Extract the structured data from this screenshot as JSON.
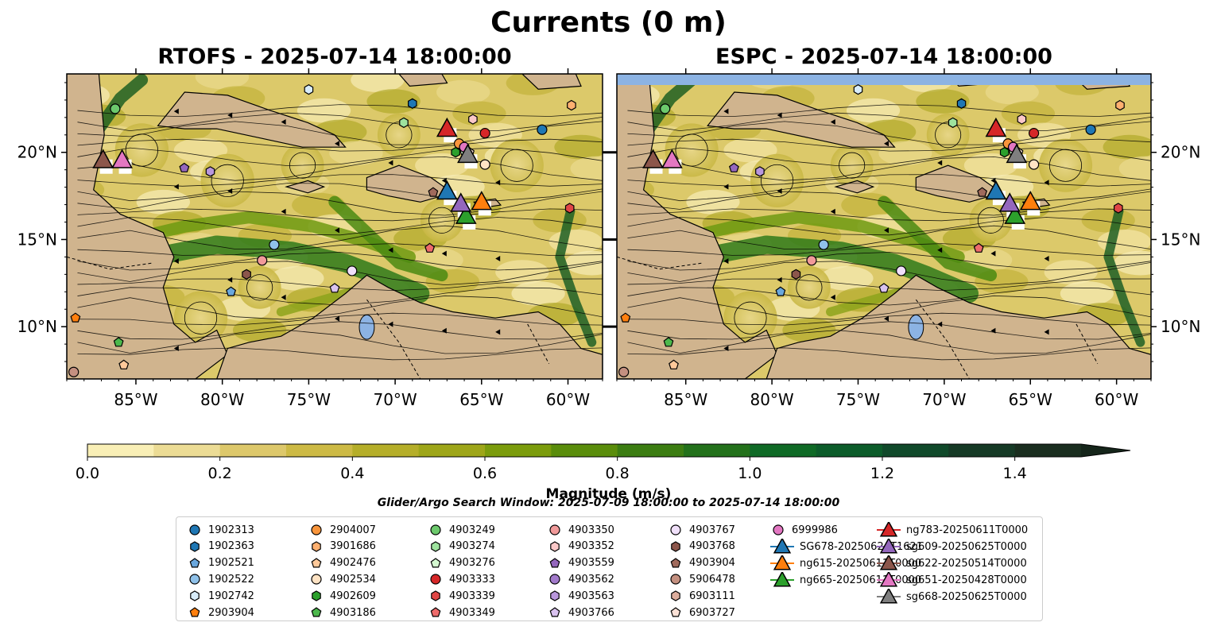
{
  "title": "Currents (0 m)",
  "panels": [
    {
      "title": "RTOFS - 2025-07-14 18:00:00"
    },
    {
      "title": "ESPC - 2025-07-14 18:00:00"
    }
  ],
  "lon_ticks": [
    "85°W",
    "80°W",
    "75°W",
    "70°W",
    "65°W",
    "60°W"
  ],
  "lat_ticks": [
    "20°N",
    "15°N",
    "10°N"
  ],
  "extent": {
    "lon": [
      -89,
      -58
    ],
    "lat": [
      7,
      24.5
    ]
  },
  "colorbar": {
    "label": "Magnitude (m/s)",
    "ticks": [
      "0.0",
      "0.2",
      "0.4",
      "0.6",
      "0.8",
      "1.0",
      "1.2",
      "1.4"
    ],
    "colors": [
      "#f9efb6",
      "#ecdc95",
      "#ddc86b",
      "#cdba45",
      "#b5ae29",
      "#9ea619",
      "#7b9c0c",
      "#5a8d0b",
      "#3c7d12",
      "#23711b",
      "#0f6a26",
      "#0c5c2a",
      "#10492a",
      "#163a26",
      "#1a2e1f"
    ],
    "extend_color": "#15251a"
  },
  "search_window": "Glider/Argo Search Window: 2025-07-09 18:00:00 to 2025-07-14 18:00:00",
  "colors": {
    "land": "#d0b48e",
    "water_blue": "#8cb3e3",
    "track_white": "#ffffff"
  },
  "legend": [
    {
      "label": "1902313",
      "marker": "circle",
      "color": "#1f77b4"
    },
    {
      "label": "1902363",
      "marker": "hexagon",
      "color": "#1f77b4"
    },
    {
      "label": "1902521",
      "marker": "pentagon",
      "color": "#6aa7dd"
    },
    {
      "label": "1902522",
      "marker": "circle",
      "color": "#8fc1e9"
    },
    {
      "label": "1902742",
      "marker": "hexagon",
      "color": "#d8ecfa"
    },
    {
      "label": "2903904",
      "marker": "pentagon",
      "color": "#ff7f0e"
    },
    {
      "label": "2904007",
      "marker": "circle",
      "color": "#f9953b"
    },
    {
      "label": "3901686",
      "marker": "hexagon",
      "color": "#ffb070"
    },
    {
      "label": "4902476",
      "marker": "pentagon",
      "color": "#ffc99a"
    },
    {
      "label": "4902534",
      "marker": "circle",
      "color": "#ffe3c4"
    },
    {
      "label": "4902609",
      "marker": "hexagon",
      "color": "#2ca02c"
    },
    {
      "label": "4903186",
      "marker": "pentagon",
      "color": "#4cb84c"
    },
    {
      "label": "4903249",
      "marker": "circle",
      "color": "#6cc96c"
    },
    {
      "label": "4903274",
      "marker": "hexagon",
      "color": "#9ee39e"
    },
    {
      "label": "4903276",
      "marker": "pentagon",
      "color": "#d4f8d0"
    },
    {
      "label": "4903333",
      "marker": "circle",
      "color": "#d62728"
    },
    {
      "label": "4903339",
      "marker": "hexagon",
      "color": "#e04646"
    },
    {
      "label": "4903349",
      "marker": "pentagon",
      "color": "#ee6b6b"
    },
    {
      "label": "4903350",
      "marker": "circle",
      "color": "#f19a9a"
    },
    {
      "label": "4903352",
      "marker": "hexagon",
      "color": "#fbc8c8"
    },
    {
      "label": "4903559",
      "marker": "pentagon",
      "color": "#9467bd"
    },
    {
      "label": "4903562",
      "marker": "circle",
      "color": "#a27acb"
    },
    {
      "label": "4903563",
      "marker": "hexagon",
      "color": "#b997dc"
    },
    {
      "label": "4903766",
      "marker": "pentagon",
      "color": "#d9c2ef"
    },
    {
      "label": "4903767",
      "marker": "circle",
      "color": "#f0e0fa"
    },
    {
      "label": "4903768",
      "marker": "hexagon",
      "color": "#8c564b"
    },
    {
      "label": "4903904",
      "marker": "pentagon",
      "color": "#a06a5c"
    },
    {
      "label": "5906478",
      "marker": "circle",
      "color": "#c49080"
    },
    {
      "label": "6903111",
      "marker": "hexagon",
      "color": "#ddad9d"
    },
    {
      "label": "6903727",
      "marker": "pentagon",
      "color": "#fbe1d6"
    },
    {
      "label": "6999986",
      "marker": "circle",
      "color": "#e377c2"
    },
    {
      "label": "SG678-20250624T1621",
      "marker": "triangle",
      "color": "#1f77b4"
    },
    {
      "label": "ng615-20250611T0000",
      "marker": "triangle",
      "color": "#ff7f0e"
    },
    {
      "label": "ng665-20250611T0000",
      "marker": "triangle",
      "color": "#2ca02c"
    },
    {
      "label": "ng783-20250611T0000",
      "marker": "triangle",
      "color": "#d62728"
    },
    {
      "label": "sg609-20250625T0000",
      "marker": "triangle",
      "color": "#9467bd"
    },
    {
      "label": "sg622-20250514T0000",
      "marker": "triangle",
      "color": "#8c564b"
    },
    {
      "label": "sg651-20250428T0000",
      "marker": "triangle",
      "color": "#e377c2"
    },
    {
      "label": "sg668-20250625T0000",
      "marker": "triangle",
      "color": "#7f7f7f"
    }
  ],
  "floats_argo": [
    {
      "id": "1902313",
      "lon": -61.5,
      "lat": 21.3
    },
    {
      "id": "1902363",
      "lon": -69.0,
      "lat": 22.8
    },
    {
      "id": "1902521",
      "lon": -79.5,
      "lat": 12.0
    },
    {
      "id": "1902522",
      "lon": -77.0,
      "lat": 14.7
    },
    {
      "id": "1902742",
      "lon": -75.0,
      "lat": 23.6
    },
    {
      "id": "2903904",
      "lon": -88.5,
      "lat": 10.5
    },
    {
      "id": "2904007",
      "lon": -66.3,
      "lat": 20.5
    },
    {
      "id": "3901686",
      "lon": -59.8,
      "lat": 22.7
    },
    {
      "id": "4902476",
      "lon": -85.7,
      "lat": 7.8
    },
    {
      "id": "4902534",
      "lon": -64.8,
      "lat": 19.3
    },
    {
      "id": "4902609",
      "lon": -66.5,
      "lat": 20.0
    },
    {
      "id": "4903186",
      "lon": -86.0,
      "lat": 9.1
    },
    {
      "id": "4903249",
      "lon": -86.2,
      "lat": 22.5
    },
    {
      "id": "4903274",
      "lon": -69.5,
      "lat": 21.7
    },
    {
      "id": "4903276",
      "lon": -66.0,
      "lat": 20.1
    },
    {
      "id": "4903333",
      "lon": -64.8,
      "lat": 21.1
    },
    {
      "id": "4903339",
      "lon": -59.9,
      "lat": 16.8
    },
    {
      "id": "4903349",
      "lon": -68.0,
      "lat": 14.5
    },
    {
      "id": "4903350",
      "lon": -77.7,
      "lat": 13.8
    },
    {
      "id": "4903352",
      "lon": -65.5,
      "lat": 21.9
    },
    {
      "id": "4903559",
      "lon": -82.2,
      "lat": 19.1
    },
    {
      "id": "4903562",
      "lon": -66.2,
      "lat": 17.0
    },
    {
      "id": "4903563",
      "lon": -80.7,
      "lat": 18.9
    },
    {
      "id": "4903766",
      "lon": -73.5,
      "lat": 12.2
    },
    {
      "id": "4903767",
      "lon": -72.5,
      "lat": 13.2
    },
    {
      "id": "4903768",
      "lon": -78.6,
      "lat": 13.0
    },
    {
      "id": "4903904",
      "lon": -67.8,
      "lat": 17.7
    },
    {
      "id": "5906478",
      "lon": -88.6,
      "lat": 7.4
    },
    {
      "id": "6903111",
      "lon": -66.3,
      "lat": 16.9
    },
    {
      "id": "6903727",
      "lon": -65.7,
      "lat": 20.0
    },
    {
      "id": "6999986",
      "lon": -66.0,
      "lat": 20.3
    }
  ],
  "gliders": [
    {
      "id": "SG678-20250624T1621",
      "lon": -67.0,
      "lat": 17.7
    },
    {
      "id": "ng615-20250611T0000",
      "lon": -65.0,
      "lat": 17.1
    },
    {
      "id": "ng665-20250611T0000",
      "lon": -65.9,
      "lat": 16.3
    },
    {
      "id": "ng783-20250611T0000",
      "lon": -67.0,
      "lat": 21.3
    },
    {
      "id": "sg609-20250625T0000",
      "lon": -66.2,
      "lat": 17.0
    },
    {
      "id": "sg622-20250514T0000",
      "lon": -86.9,
      "lat": 19.5
    },
    {
      "id": "sg651-20250428T0000",
      "lon": -85.8,
      "lat": 19.5
    },
    {
      "id": "sg668-20250625T0000",
      "lon": -65.8,
      "lat": 19.8
    }
  ]
}
